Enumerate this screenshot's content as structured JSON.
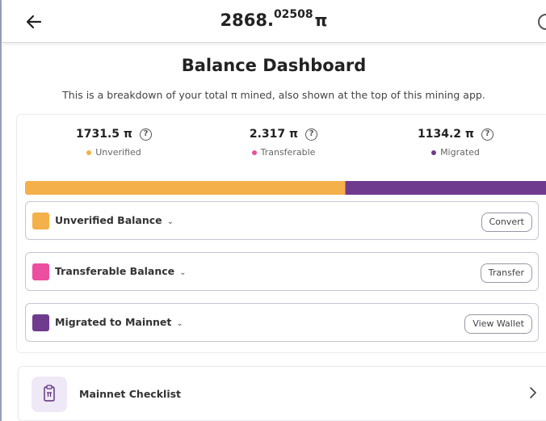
{
  "header": {
    "balance_int": "2868.",
    "balance_frac": "02508",
    "pi_symbol": "π"
  },
  "page": {
    "title": "Balance Dashboard",
    "subtitle": "This is a breakdown of your total π mined, also shown at the top of this mining app."
  },
  "stats": [
    {
      "value": "1731.5 π",
      "label": "Unverified",
      "color": "#f4b04a"
    },
    {
      "value": "2.317 π",
      "label": "Transferable",
      "color": "#ec4ea0"
    },
    {
      "value": "1134.2 π",
      "label": "Migrated",
      "color": "#6f3b8f"
    }
  ],
  "bar": {
    "unverified": 1731.5,
    "transferable": 2.317,
    "migrated": 1134.2
  },
  "rows": [
    {
      "name": "Unverified Balance",
      "action": "Convert",
      "color": "#f4b04a"
    },
    {
      "name": "Transferable Balance",
      "action": "Transfer",
      "color": "#ec4ea0"
    },
    {
      "name": "Migrated to Mainnet",
      "action": "View Wallet",
      "color": "#6f3b8f"
    }
  ],
  "checklist": {
    "label": "Mainnet Checklist"
  },
  "help_glyph": "?",
  "chevron_glyph": "⌄"
}
